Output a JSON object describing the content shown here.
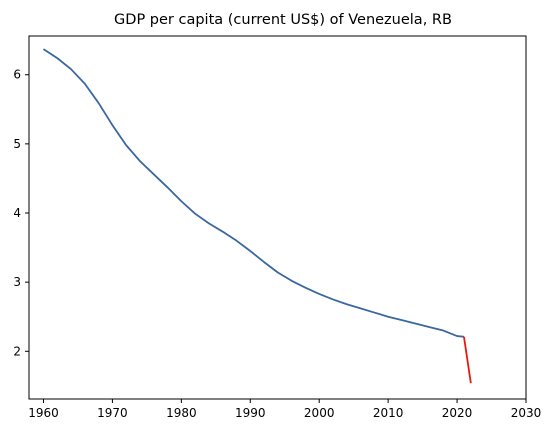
{
  "chart_data": {
    "type": "line",
    "title": "GDP per capita (current US$) of Venezuela, RB",
    "xlabel": "",
    "ylabel": "",
    "xlim": [
      1957.9,
      2030
    ],
    "ylim": [
      1.31,
      6.56
    ],
    "xticks": [
      1960,
      1970,
      1980,
      1990,
      2000,
      2010,
      2020,
      2030
    ],
    "yticks": [
      2,
      3,
      4,
      5,
      6
    ],
    "grid": false,
    "series": [
      {
        "color": "#3a67a0",
        "x": [
          1960,
          1962,
          1964,
          1966,
          1968,
          1970,
          1972,
          1974,
          1976,
          1978,
          1980,
          1982,
          1984,
          1986,
          1988,
          1990,
          1992,
          1994,
          1996,
          1998,
          2000,
          2002,
          2004,
          2006,
          2008,
          2010,
          2012,
          2014,
          2016,
          2018,
          2020,
          2021
        ],
        "y": [
          6.37,
          6.24,
          6.08,
          5.87,
          5.59,
          5.27,
          4.98,
          4.75,
          4.56,
          4.37,
          4.17,
          3.99,
          3.85,
          3.73,
          3.6,
          3.45,
          3.29,
          3.14,
          3.02,
          2.92,
          2.83,
          2.75,
          2.68,
          2.62,
          2.56,
          2.5,
          2.45,
          2.4,
          2.35,
          2.3,
          2.22,
          2.21
        ]
      },
      {
        "color": "#e8180f",
        "x": [
          2021,
          2022
        ],
        "y": [
          2.21,
          1.54
        ]
      }
    ]
  }
}
